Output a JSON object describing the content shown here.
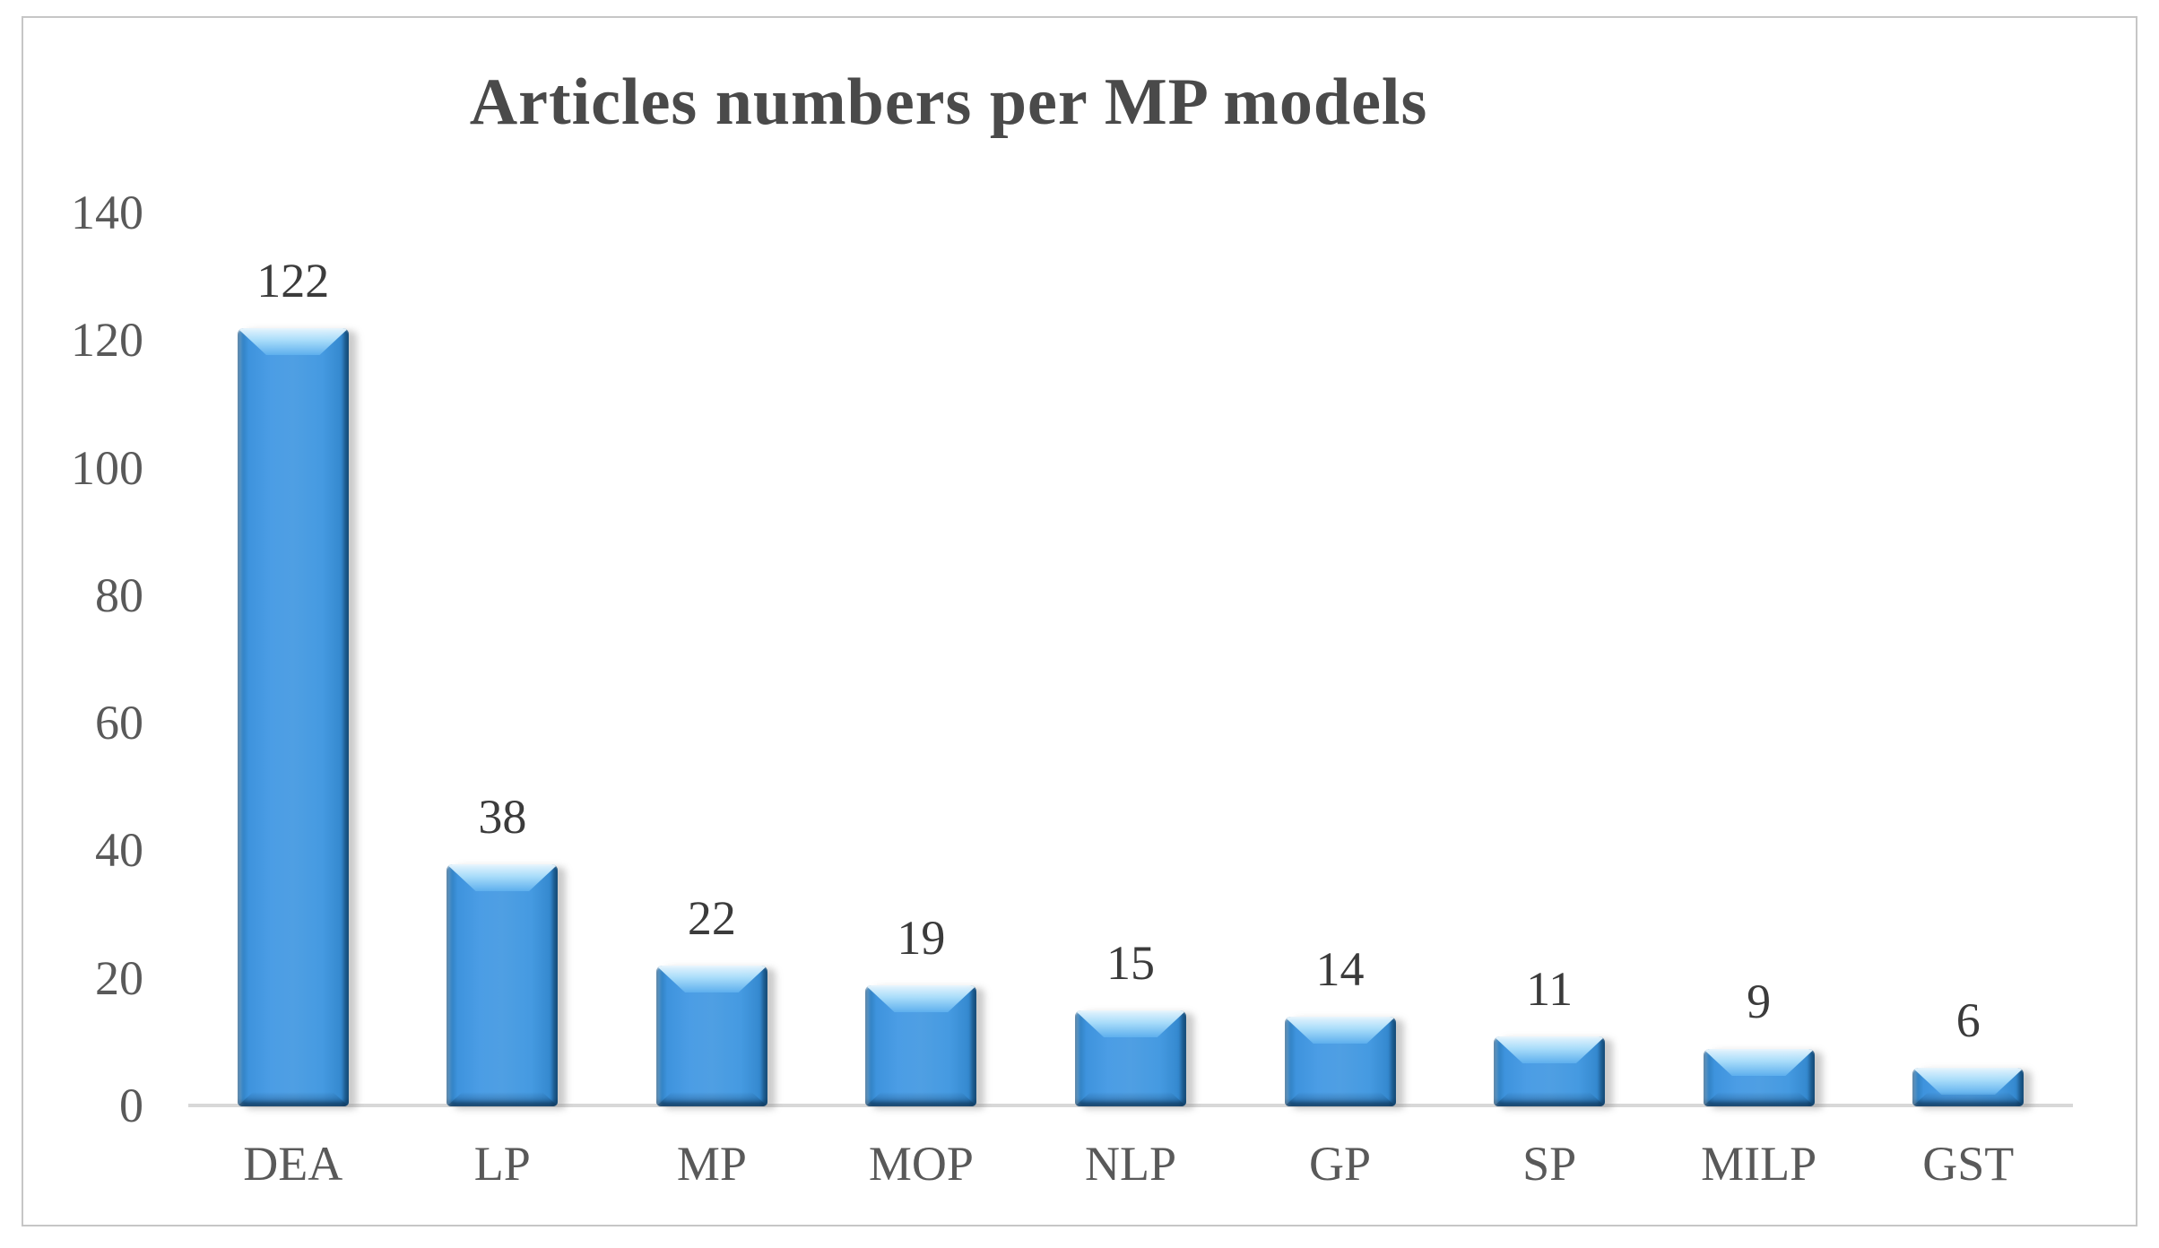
{
  "chart_data": {
    "type": "bar",
    "title": "Articles numbers per MP models",
    "categories": [
      "DEA",
      "LP",
      "MP",
      "MOP",
      "NLP",
      "GP",
      "SP",
      "MILP",
      "GST"
    ],
    "values": [
      122,
      38,
      22,
      19,
      15,
      14,
      11,
      9,
      6
    ],
    "xlabel": "",
    "ylabel": "",
    "ylim": [
      0,
      140
    ],
    "yticks": [
      0,
      20,
      40,
      60,
      80,
      100,
      120,
      140
    ],
    "legend_position": "none",
    "grid": false,
    "colors": {
      "bar_fill": "#4a9be4",
      "bar_edge": "#1d5d92",
      "bar_highlight": "#aee0fb",
      "value_label": "#3b3b3b",
      "axis_text": "#595959",
      "title_text": "#4a4a4a",
      "axis_line": "#d8d8d8",
      "frame_border": "#c6c6c6"
    }
  }
}
